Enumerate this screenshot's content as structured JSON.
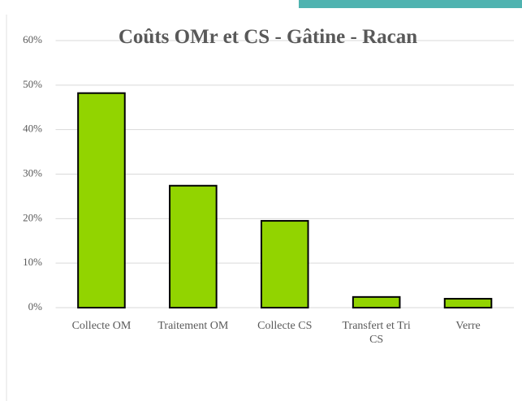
{
  "chart_data": {
    "type": "bar",
    "title": "Coûts OMr et CS - Gâtine - Racan",
    "categories": [
      "Collecte OM",
      "Traitement OM",
      "Collecte CS",
      "Transfert et Tri CS",
      "Verre"
    ],
    "values": [
      48.2,
      27.4,
      19.5,
      2.4,
      2.0
    ],
    "color": "#92d400",
    "ylim": [
      0,
      60
    ],
    "yticks": [
      {
        "value": 0,
        "label": "0%"
      },
      {
        "value": 10,
        "label": "10%"
      },
      {
        "value": 20,
        "label": "20%"
      },
      {
        "value": 30,
        "label": "30%"
      },
      {
        "value": 40,
        "label": "40%"
      },
      {
        "value": 50,
        "label": "50%"
      },
      {
        "value": 60,
        "label": "60%"
      }
    ],
    "grid": true
  }
}
